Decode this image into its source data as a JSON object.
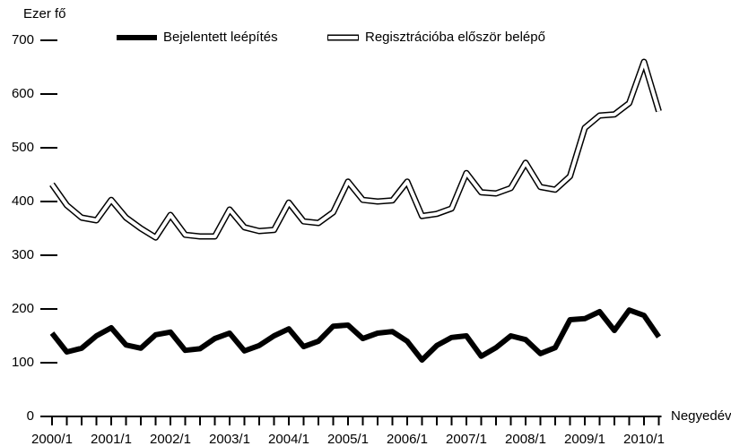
{
  "chart_data": {
    "type": "line",
    "ylabel": "Ezer fő",
    "xlabel": "Negyedév",
    "categories": [
      "2000/1",
      null,
      null,
      null,
      "2001/1",
      null,
      null,
      null,
      "2002/1",
      null,
      null,
      null,
      "2003/1",
      null,
      null,
      null,
      "2004/1",
      null,
      null,
      null,
      "2005/1",
      null,
      null,
      null,
      "2006/1",
      null,
      null,
      null,
      "2007/1",
      null,
      null,
      null,
      "2008/1",
      null,
      null,
      null,
      "2009/1",
      null,
      null,
      null,
      "2010/1",
      null
    ],
    "series": [
      {
        "name": "Bejelentett leépítés",
        "color": "#000000",
        "style": "solid",
        "values": [
          155,
          120,
          127,
          150,
          165,
          133,
          127,
          152,
          157,
          123,
          126,
          145,
          155,
          122,
          132,
          150,
          163,
          130,
          140,
          168,
          170,
          145,
          155,
          158,
          140,
          105,
          132,
          147,
          150,
          112,
          128,
          150,
          143,
          117,
          128,
          180,
          182,
          195,
          160,
          198,
          188,
          148
        ]
      },
      {
        "name": "Regisztrációba először belépő",
        "color": "#ffffff",
        "style": "double",
        "values": [
          432,
          393,
          370,
          365,
          403,
          370,
          350,
          333,
          375,
          338,
          335,
          335,
          385,
          352,
          345,
          347,
          398,
          363,
          360,
          380,
          437,
          403,
          400,
          402,
          437,
          373,
          377,
          387,
          453,
          417,
          415,
          425,
          472,
          427,
          422,
          447,
          537,
          560,
          562,
          583,
          660,
          568
        ]
      }
    ],
    "ylim": [
      0,
      700
    ],
    "yticks": [
      0,
      100,
      200,
      300,
      400,
      500,
      600,
      700
    ],
    "grid": false,
    "legend": "top"
  }
}
